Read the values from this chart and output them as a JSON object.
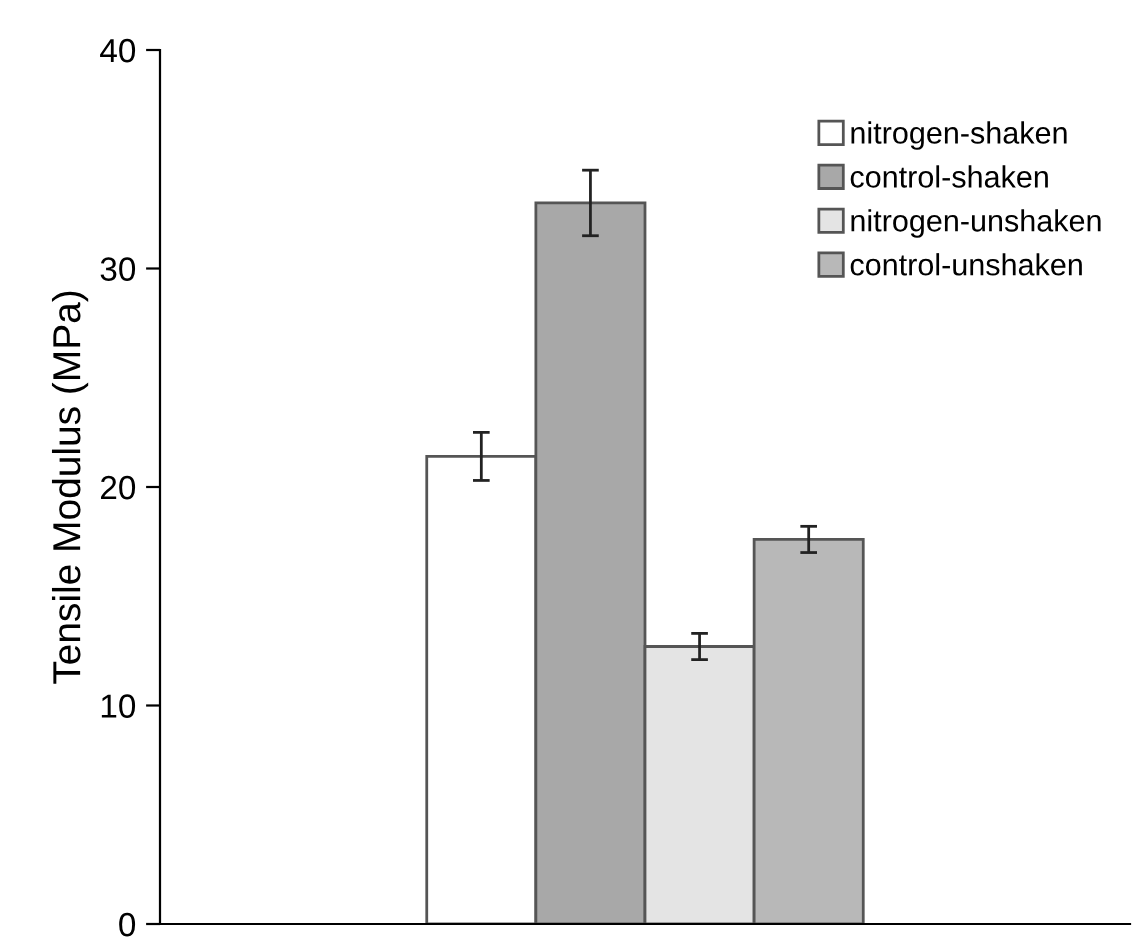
{
  "chart_data": {
    "type": "bar",
    "ylabel": "Tensile Modulus (MPa)",
    "categories": [
      null
    ],
    "series": [
      {
        "name": "nitrogen-shaken",
        "color": "#ffffff",
        "values": [
          21.4
        ],
        "errors": [
          1.1
        ]
      },
      {
        "name": "control-shaken",
        "color": "#a8a8a8",
        "values": [
          33.0
        ],
        "errors": [
          1.5
        ]
      },
      {
        "name": "nitrogen-unshaken",
        "color": "#e4e4e4",
        "values": [
          12.7
        ],
        "errors": [
          0.6
        ]
      },
      {
        "name": "control-unshaken",
        "color": "#b8b8b8",
        "values": [
          17.6
        ],
        "errors": [
          0.6
        ]
      }
    ],
    "ylim": [
      0,
      40
    ],
    "yticks": [
      0,
      10,
      20,
      30,
      40
    ],
    "grid": false,
    "legend": "top right"
  }
}
